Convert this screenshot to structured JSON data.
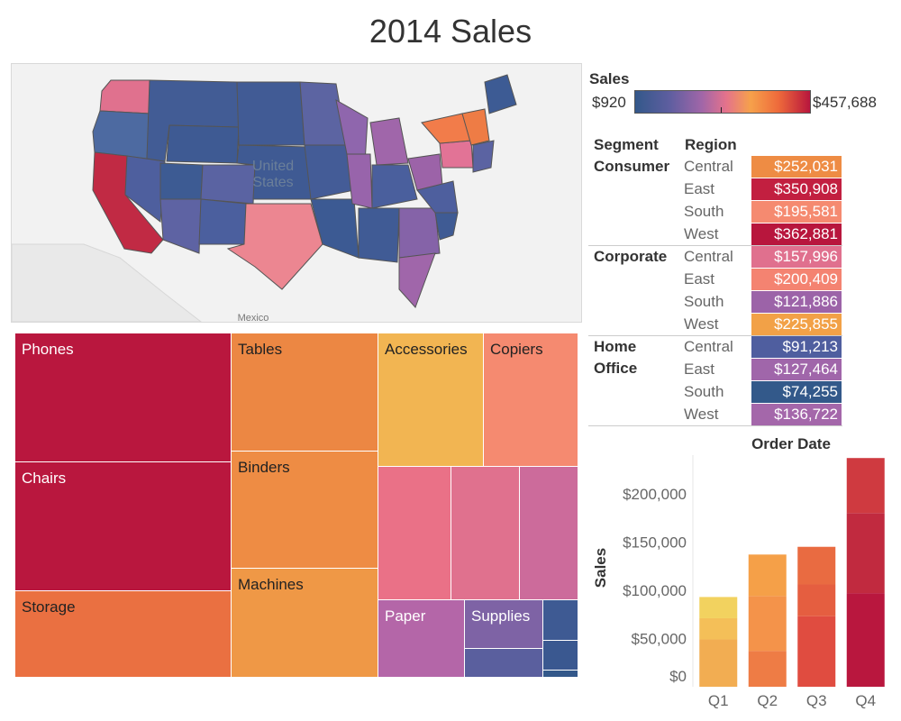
{
  "title": "2014 Sales",
  "map": {
    "labels": [
      "United",
      "States",
      "Mexico"
    ]
  },
  "legend": {
    "title": "Sales",
    "min_label": "$920",
    "max_label": "$457,688"
  },
  "table": {
    "headers": [
      "Segment",
      "Region"
    ],
    "groups": [
      {
        "segment_lines": [
          "Consumer"
        ],
        "rows": [
          {
            "region": "Central",
            "value": "$252,031",
            "color": "#ee8c44"
          },
          {
            "region": "East",
            "value": "$350,908",
            "color": "#c21f40"
          },
          {
            "region": "South",
            "value": "$195,581",
            "color": "#f58a70"
          },
          {
            "region": "West",
            "value": "$362,881",
            "color": "#b8163d"
          }
        ]
      },
      {
        "segment_lines": [
          "Corporate"
        ],
        "rows": [
          {
            "region": "Central",
            "value": "$157,996",
            "color": "#e0708e"
          },
          {
            "region": "East",
            "value": "$200,409",
            "color": "#f48371"
          },
          {
            "region": "South",
            "value": "$121,886",
            "color": "#9c63a8"
          },
          {
            "region": "West",
            "value": "$225,855",
            "color": "#f2a147"
          }
        ]
      },
      {
        "segment_lines": [
          "Home",
          "Office"
        ],
        "rows": [
          {
            "region": "Central",
            "value": "$91,213",
            "color": "#4f5e9f"
          },
          {
            "region": "East",
            "value": "$127,464",
            "color": "#a066aa"
          },
          {
            "region": "South",
            "value": "$74,255",
            "color": "#33598a"
          },
          {
            "region": "West",
            "value": "$136,722",
            "color": "#a467aa"
          }
        ]
      }
    ]
  },
  "treemap": {
    "labels": {
      "phones": "Phones",
      "chairs": "Chairs",
      "storage": "Storage",
      "tables": "Tables",
      "binders": "Binders",
      "machines": "Machines",
      "accessories": "Accessories",
      "copiers": "Copiers",
      "paper": "Paper",
      "supplies": "Supplies"
    },
    "colors": {
      "phones": "#b9173e",
      "chairs": "#b9173e",
      "storage": "#ea7041",
      "tables": "#ec8743",
      "binders": "#ee8c44",
      "machines": "#ef9846",
      "accessories": "#f2b552",
      "copiers": "#f58a70",
      "paper": "#b466a8",
      "supplies": "#7e63a5"
    }
  },
  "chart_data": {
    "type": "bar",
    "title": "Order Date",
    "ylabel": "Sales",
    "categories": [
      "Q1",
      "Q2",
      "Q3",
      "Q4"
    ],
    "ylim": [
      0,
      240000
    ],
    "yticks": [
      0,
      50000,
      100000,
      150000,
      200000
    ],
    "ytick_labels": [
      "$0",
      "$50,000",
      "$100,000",
      "$150,000",
      "$200,000"
    ],
    "stacks": [
      [
        {
          "value": 49000,
          "color": "#f2ad52"
        },
        {
          "value": 22000,
          "color": "#f4bf58"
        },
        {
          "value": 22000,
          "color": "#f2d25f"
        }
      ],
      [
        {
          "value": 37000,
          "color": "#ee7c45"
        },
        {
          "value": 57000,
          "color": "#f4934a"
        },
        {
          "value": 43000,
          "color": "#f5a048"
        }
      ],
      [
        {
          "value": 73000,
          "color": "#e04c40"
        },
        {
          "value": 33000,
          "color": "#e55e40"
        },
        {
          "value": 39000,
          "color": "#e96b41"
        }
      ],
      [
        {
          "value": 97000,
          "color": "#b9173e"
        },
        {
          "value": 83000,
          "color": "#c12a3f"
        },
        {
          "value": 57000,
          "color": "#cf3a40"
        }
      ]
    ]
  }
}
